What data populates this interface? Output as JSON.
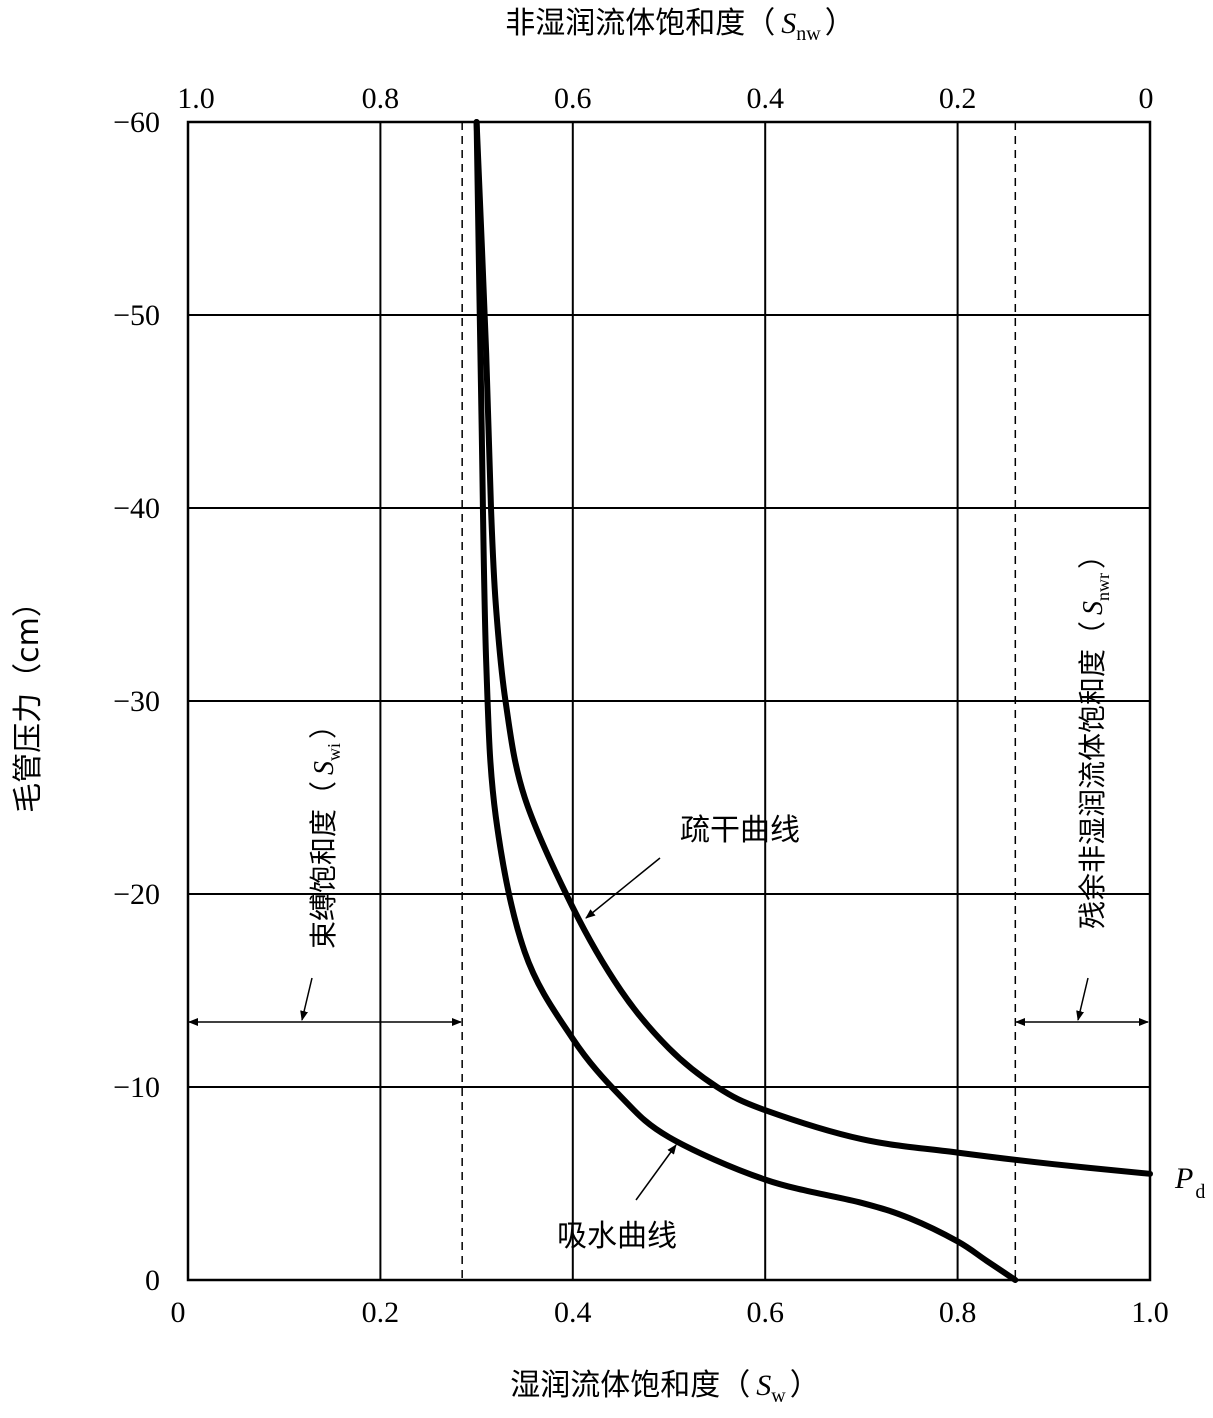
{
  "chart_data": {
    "type": "line",
    "x_bottom": {
      "label_text": "湿润流体饱和度（",
      "label_symbol": "S",
      "label_subscript": "w",
      "label_close": "）",
      "ticks": [
        "0",
        "0.2",
        "0.4",
        "0.6",
        "0.8",
        "1.0"
      ],
      "tick_values": [
        0,
        0.2,
        0.4,
        0.6,
        0.8,
        1.0
      ],
      "range": [
        0,
        1.0
      ]
    },
    "x_top": {
      "label_text": "非湿润流体饱和度（",
      "label_symbol": "S",
      "label_subscript": "nw",
      "label_close": "）",
      "ticks": [
        "1.0",
        "0.8",
        "0.6",
        "0.4",
        "0.2",
        "0"
      ],
      "tick_values": [
        0,
        0.2,
        0.4,
        0.6,
        0.8,
        1.0
      ]
    },
    "y": {
      "label": "毛管压力（cm）",
      "ticks": [
        "0",
        "−10",
        "−20",
        "−30",
        "−40",
        "−50",
        "−60"
      ],
      "tick_values": [
        0,
        -10,
        -20,
        -30,
        -40,
        -50,
        -60
      ],
      "range": [
        0,
        -60
      ]
    },
    "grid": true,
    "series": [
      {
        "name": "疏干曲线",
        "points": [
          [
            0.3,
            -60
          ],
          [
            0.31,
            -48
          ],
          [
            0.315,
            -40
          ],
          [
            0.32,
            -35
          ],
          [
            0.33,
            -30
          ],
          [
            0.35,
            -25
          ],
          [
            0.4,
            -19.3
          ],
          [
            0.45,
            -15
          ],
          [
            0.5,
            -12
          ],
          [
            0.55,
            -10
          ],
          [
            0.6,
            -8.8
          ],
          [
            0.7,
            -7.3
          ],
          [
            0.8,
            -6.6
          ],
          [
            0.9,
            -6.0
          ],
          [
            1.0,
            -5.5
          ]
        ]
      },
      {
        "name": "吸水曲线",
        "points": [
          [
            0.3,
            -60
          ],
          [
            0.305,
            -45
          ],
          [
            0.31,
            -32
          ],
          [
            0.32,
            -24
          ],
          [
            0.35,
            -17
          ],
          [
            0.4,
            -12.5
          ],
          [
            0.45,
            -9.5
          ],
          [
            0.5,
            -7.4
          ],
          [
            0.6,
            -5.2
          ],
          [
            0.7,
            -4.0
          ],
          [
            0.75,
            -3.2
          ],
          [
            0.8,
            -2.0
          ],
          [
            0.83,
            -1.0
          ],
          [
            0.86,
            0
          ]
        ]
      }
    ],
    "reference_lines": [
      {
        "name": "束缚饱和度",
        "x": 0.285
      },
      {
        "name": "残余非湿润流体饱和度",
        "x": 0.86
      }
    ],
    "annotations": {
      "swi_label": "束缚饱和度（",
      "swi_symbol": "S",
      "swi_sub": "wi",
      "swi_close": "）",
      "snwr_label": "残余非湿润流体饱和度（",
      "snwr_symbol": "S",
      "snwr_sub": "nwr",
      "snwr_close": "）",
      "drainage_label": "疏干曲线",
      "imbibition_label": "吸水曲线",
      "pd_symbol": "P",
      "pd_sub": "d"
    }
  }
}
